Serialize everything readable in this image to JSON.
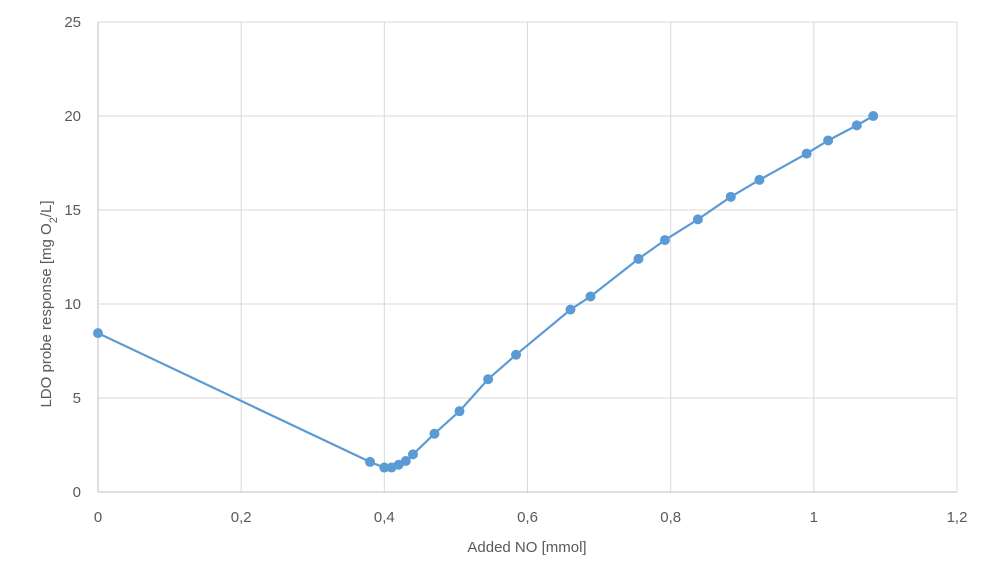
{
  "chart_data": {
    "type": "line",
    "title": "",
    "xlabel": "Added NO [mmol]",
    "ylabel": {
      "pre": "LDO probe response [mg O",
      "sub": "2",
      "post": "/L]"
    },
    "xlim": [
      0,
      1.2
    ],
    "ylim": [
      0,
      25
    ],
    "x_ticks": [
      0,
      0.2,
      0.4,
      0.6,
      0.8,
      1.0,
      1.2
    ],
    "x_tick_labels": [
      "0",
      "0,2",
      "0,4",
      "0,6",
      "0,8",
      "1",
      "1,2"
    ],
    "y_ticks": [
      0,
      5,
      10,
      15,
      20,
      25
    ],
    "y_tick_labels": [
      "0",
      "5",
      "10",
      "15",
      "20",
      "25"
    ],
    "grid": true,
    "series": [
      {
        "color": "#5b9bd5",
        "marker": "circle",
        "x": [
          0,
          0.38,
          0.4,
          0.41,
          0.42,
          0.43,
          0.44,
          0.47,
          0.505,
          0.545,
          0.584,
          0.66,
          0.688,
          0.755,
          0.792,
          0.838,
          0.884,
          0.924,
          0.99,
          1.02,
          1.06,
          1.083
        ],
        "y": [
          8.45,
          1.6,
          1.3,
          1.3,
          1.45,
          1.65,
          2.0,
          3.1,
          4.3,
          6.0,
          7.3,
          9.7,
          10.4,
          12.4,
          13.4,
          14.5,
          15.7,
          16.6,
          18.0,
          18.7,
          19.5,
          20.0
        ]
      }
    ]
  }
}
